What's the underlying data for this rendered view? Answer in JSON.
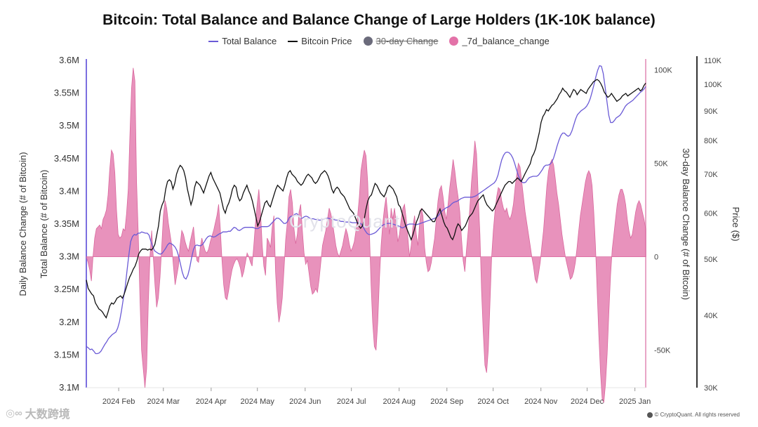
{
  "chart_data": {
    "type": "line",
    "title": "Bitcoin: Total Balance and Balance Change of Large Holders (1K-10K balance)",
    "legend": [
      {
        "name": "Total Balance",
        "color": "#6a5ad6",
        "marker": "line"
      },
      {
        "name": "Bitcoin Price",
        "color": "#111111",
        "marker": "line"
      },
      {
        "name": "30-day Change",
        "color": "#6b6b7b",
        "marker": "dot",
        "hidden": true
      },
      {
        "name": "_7d_balance_change",
        "color": "#e372a8",
        "marker": "dot"
      }
    ],
    "legend_position": "top-center",
    "grid": false,
    "x_ticks": [
      "2024 Feb",
      "2024 Mar",
      "2024 Apr",
      "2024 May",
      "2024 Jun",
      "2024 Jul",
      "2024 Aug",
      "2024 Sep",
      "2024 Oct",
      "2024 Nov",
      "2024 Dec",
      "2025 Jan"
    ],
    "x_range": [
      "2024-01-11",
      "2025-01-08"
    ],
    "axes": {
      "left_outer": {
        "label": "Daily Balance Change (# of Bitcoin)",
        "ticks": []
      },
      "left_inner": {
        "label": "Total Balance (# of Bitcoin)",
        "range": [
          3100000,
          3600000
        ],
        "ticks": [
          "3.6M",
          "3.55M",
          "3.5M",
          "3.45M",
          "3.4M",
          "3.35M",
          "3.3M",
          "3.25M",
          "3.2M",
          "3.15M",
          "3.1M"
        ]
      },
      "right_inner": {
        "label": "30-day Balance Change (# of Bitcoin)",
        "range": [
          -70000,
          105000
        ],
        "ticks": [
          "100K",
          "50K",
          "0",
          "-50K"
        ]
      },
      "right_outer": {
        "label": "Price ($)",
        "scale": "log",
        "range": [
          30000,
          110000
        ],
        "ticks": [
          "110K",
          "100K",
          "90K",
          "80K",
          "70K",
          "60K",
          "50K",
          "40K",
          "30K"
        ]
      }
    },
    "series": [
      {
        "name": "_7d_balance_change",
        "axis": "right_inner",
        "type": "area",
        "values": [
          0,
          -3000,
          -7000,
          -13000,
          0,
          10000,
          15000,
          16000,
          17000,
          15000,
          20000,
          22000,
          25000,
          33000,
          47000,
          57000,
          55000,
          45000,
          25000,
          12000,
          10000,
          11000,
          15000,
          14000,
          23000,
          36000,
          64000,
          90000,
          101000,
          94000,
          40000,
          12000,
          -22000,
          -50000,
          -60000,
          -70000,
          -60000,
          -25000,
          0,
          14000,
          0,
          -15000,
          -27000,
          -22000,
          -11000,
          5000,
          22000,
          30000,
          26000,
          18000,
          12000,
          6000,
          -5000,
          -15000,
          -10000,
          -5000,
          6000,
          14000,
          12000,
          8000,
          5000,
          3000,
          8000,
          12000,
          16000,
          6000,
          -2000,
          -3000,
          5000,
          10000,
          6000,
          3000,
          2000,
          4000,
          8000,
          11000,
          14000,
          18000,
          22000,
          28000,
          15000,
          -2000,
          -15000,
          -22000,
          -23000,
          -18000,
          -12000,
          -7000,
          -4000,
          -2000,
          -1000,
          -3000,
          -6000,
          -11000,
          -8000,
          -3000,
          2000,
          0,
          -3000,
          -5000,
          6000,
          18000,
          28000,
          36000,
          24000,
          6000,
          -5000,
          -10000,
          10000,
          8000,
          5000,
          16000,
          22000,
          -8000,
          -25000,
          -35000,
          -30000,
          -22000,
          -7000,
          9000,
          18000,
          32000,
          36000,
          29000,
          15000,
          7000,
          12000,
          24000,
          28000,
          14000,
          2000,
          -4000,
          -2000,
          -9000,
          -16000,
          -20000,
          -19000,
          -17000,
          -19000,
          -12000,
          -3000,
          6000,
          10000,
          14000,
          20000,
          26000,
          23000,
          18000,
          12000,
          6000,
          2000,
          0,
          3000,
          6000,
          11000,
          15000,
          12000,
          7000,
          3000,
          5000,
          8000,
          14000,
          22000,
          32000,
          46000,
          52000,
          57000,
          54000,
          40000,
          14000,
          -15000,
          -35000,
          -48000,
          -50000,
          -35000,
          -12000,
          6000,
          18000,
          26000,
          32000,
          22000,
          12000,
          26000,
          20000,
          26000,
          18000,
          8000,
          12000,
          20000,
          26000,
          28000,
          20000,
          10000,
          0,
          6000,
          16000,
          22000,
          12000,
          6000,
          18000,
          26000,
          22000,
          5000,
          -3000,
          -8000,
          -7000,
          -3000,
          4000,
          10000,
          20000,
          30000,
          36000,
          38000,
          32000,
          24000,
          20000,
          28000,
          37000,
          44000,
          52000,
          46000,
          38000,
          32000,
          24000,
          10000,
          -2000,
          -8000,
          4000,
          14000,
          26000,
          40000,
          50000,
          62000,
          55000,
          32000,
          12000,
          -18000,
          -40000,
          -58000,
          -62000,
          -50000,
          -25000,
          0,
          14000,
          24000,
          32000,
          37000,
          36000,
          30000,
          26000,
          24000,
          26000,
          22000,
          20000,
          23000,
          28000,
          37000,
          44000,
          50000,
          48000,
          40000,
          32000,
          24000,
          18000,
          12000,
          6000,
          0,
          -5000,
          -12000,
          -14000,
          -9000,
          -3000,
          6000,
          14000,
          26000,
          38000,
          46000,
          50000,
          52000,
          49000,
          42000,
          34000,
          28000,
          20000,
          12000,
          6000,
          0,
          -4000,
          -8000,
          -12000,
          -11000,
          -8000,
          -3000,
          5000,
          14000,
          22000,
          28000,
          34000,
          40000,
          44000,
          46000,
          44000,
          38000,
          24000,
          6000,
          -18000,
          -42000,
          -62000,
          -76000,
          -78000,
          -68000,
          -52000,
          -30000,
          -10000,
          4000,
          12000,
          20000,
          28000,
          33000,
          36000,
          36000,
          33000,
          28000,
          20000,
          14000,
          10000,
          12000,
          18000,
          24000,
          28000,
          30000,
          28000,
          24000,
          20000,
          15000
        ]
      },
      {
        "name": "Total Balance",
        "axis": "left_inner",
        "type": "line",
        "values": [
          3163000,
          3161000,
          3158000,
          3159000,
          3156000,
          3152000,
          3152000,
          3153000,
          3156000,
          3161000,
          3166000,
          3170000,
          3175000,
          3178000,
          3181000,
          3183000,
          3185000,
          3191000,
          3201000,
          3217000,
          3235000,
          3252000,
          3278000,
          3302000,
          3323000,
          3331000,
          3334000,
          3333000,
          3336000,
          3336000,
          3338000,
          3337000,
          3336000,
          3336000,
          3333000,
          3323000,
          3315000,
          3309000,
          3307000,
          3305000,
          3304000,
          3305000,
          3309000,
          3313000,
          3318000,
          3321000,
          3320000,
          3318000,
          3315000,
          3310000,
          3301000,
          3289000,
          3276000,
          3268000,
          3266000,
          3272000,
          3283000,
          3298000,
          3311000,
          3317000,
          3318000,
          3317000,
          3317000,
          3319000,
          3323000,
          3328000,
          3331000,
          3332000,
          3331000,
          3330000,
          3331000,
          3333000,
          3335000,
          3336000,
          3338000,
          3338000,
          3338000,
          3339000,
          3339000,
          3342000,
          3345000,
          3344000,
          3341000,
          3340000,
          3342000,
          3344000,
          3345000,
          3345000,
          3345000,
          3345000,
          3345000,
          3344000,
          3343000,
          3343000,
          3345000,
          3346000,
          3346000,
          3346000,
          3346000,
          3347000,
          3350000,
          3353000,
          3356000,
          3359000,
          3359000,
          3357000,
          3354000,
          3351000,
          3351000,
          3354000,
          3360000,
          3362000,
          3362000,
          3365000,
          3366000,
          3363000,
          3359000,
          3359000,
          3361000,
          3362000,
          3361000,
          3359000,
          3358000,
          3358000,
          3357000,
          3357000,
          3356000,
          3356000,
          3357000,
          3358000,
          3359000,
          3359000,
          3358000,
          3358000,
          3357000,
          3356000,
          3356000,
          3355000,
          3354000,
          3354000,
          3353000,
          3353000,
          3353000,
          3353000,
          3352000,
          3352000,
          3352000,
          3352000,
          3352000,
          3350000,
          3345000,
          3340000,
          3336000,
          3334000,
          3334000,
          3335000,
          3336000,
          3338000,
          3341000,
          3344000,
          3347000,
          3349000,
          3350000,
          3351000,
          3351000,
          3351000,
          3350000,
          3349000,
          3348000,
          3347000,
          3346000,
          3344000,
          3345000,
          3347000,
          3349000,
          3350000,
          3350000,
          3350000,
          3349000,
          3349000,
          3350000,
          3351000,
          3352000,
          3353000,
          3354000,
          3355000,
          3356000,
          3357000,
          3358000,
          3359000,
          3361000,
          3364000,
          3368000,
          3371000,
          3373000,
          3375000,
          3376000,
          3378000,
          3381000,
          3383000,
          3384000,
          3385000,
          3387000,
          3389000,
          3390000,
          3391000,
          3391000,
          3391000,
          3391000,
          3391000,
          3392000,
          3393000,
          3395000,
          3397000,
          3399000,
          3401000,
          3403000,
          3405000,
          3407000,
          3409000,
          3411000,
          3413000,
          3417000,
          3425000,
          3437000,
          3448000,
          3455000,
          3459000,
          3460000,
          3459000,
          3456000,
          3451000,
          3443000,
          3433000,
          3424000,
          3418000,
          3414000,
          3413000,
          3414000,
          3418000,
          3421000,
          3422000,
          3423000,
          3423000,
          3423000,
          3425000,
          3429000,
          3433000,
          3438000,
          3440000,
          3440000,
          3441000,
          3444000,
          3450000,
          3459000,
          3469000,
          3478000,
          3485000,
          3489000,
          3489000,
          3486000,
          3484000,
          3486000,
          3492000,
          3501000,
          3510000,
          3517000,
          3520000,
          3523000,
          3525000,
          3527000,
          3530000,
          3535000,
          3542000,
          3552000,
          3563000,
          3575000,
          3585000,
          3592000,
          3591000,
          3580000,
          3560000,
          3537000,
          3516000,
          3505000,
          3505000,
          3508000,
          3512000,
          3514000,
          3516000,
          3520000,
          3525000,
          3530000,
          3533000,
          3535000,
          3537000,
          3539000,
          3542000,
          3545000,
          3548000,
          3551000,
          3553000,
          3556000,
          3560000
        ]
      },
      {
        "name": "Bitcoin Price",
        "axis": "right_outer",
        "type": "line",
        "values": [
          46000,
          44500,
          44000,
          43500,
          43200,
          42000,
          41500,
          41000,
          40800,
          40500,
          40000,
          39600,
          40500,
          41500,
          42000,
          41800,
          42200,
          42800,
          43000,
          43200,
          42800,
          43500,
          44500,
          45500,
          46500,
          47200,
          48000,
          48600,
          49600,
          51000,
          51600,
          52000,
          52000,
          52000,
          51800,
          52000,
          51800,
          52200,
          53000,
          55000,
          57000,
          60500,
          62000,
          63000,
          66000,
          68000,
          68500,
          68000,
          66000,
          67500,
          70000,
          71500,
          72500,
          72000,
          71000,
          69000,
          66000,
          64000,
          62000,
          63500,
          66500,
          68000,
          67500,
          67000,
          66000,
          65000,
          66500,
          68000,
          69500,
          70500,
          69000,
          68000,
          67000,
          66000,
          65000,
          63000,
          61000,
          60000,
          61500,
          62500,
          64000,
          66000,
          67000,
          66500,
          64000,
          63000,
          63500,
          65000,
          66000,
          67000,
          65500,
          64500,
          63000,
          61000,
          59000,
          57000,
          58000,
          59500,
          61000,
          62500,
          63000,
          62000,
          61500,
          63000,
          64500,
          66000,
          67000,
          66500,
          66000,
          65500,
          67000,
          69000,
          70500,
          71000,
          70000,
          69500,
          69000,
          68000,
          67500,
          67000,
          67500,
          68500,
          69500,
          70000,
          69500,
          69000,
          68000,
          67500,
          68000,
          69000,
          70000,
          70500,
          71000,
          70500,
          69500,
          68000,
          66000,
          65000,
          66000,
          66500,
          66000,
          65000,
          64500,
          64000,
          63000,
          62000,
          61000,
          60500,
          60000,
          59000,
          58000,
          57000,
          56500,
          57000,
          58500,
          61000,
          63000,
          64000,
          64500,
          66000,
          67500,
          67000,
          66000,
          65000,
          64500,
          64000,
          65000,
          66500,
          67000,
          66500,
          66000,
          65000,
          64000,
          62000,
          61500,
          60000,
          58500,
          57000,
          56000,
          55000,
          54000,
          55000,
          56500,
          58000,
          59000,
          60500,
          61000,
          60500,
          60000,
          59500,
          59000,
          58500,
          58000,
          58000,
          59000,
          60000,
          61000,
          59500,
          58000,
          57000,
          56500,
          55500,
          54500,
          54000,
          55000,
          56500,
          57500,
          57000,
          56000,
          56500,
          57000,
          58000,
          59000,
          59500,
          60000,
          61000,
          62000,
          63000,
          63500,
          64000,
          64500,
          63000,
          62000,
          61500,
          61000,
          60500,
          61000,
          62000,
          63000,
          64000,
          65000,
          66000,
          67000,
          67500,
          68000,
          68000,
          67500,
          68000,
          68500,
          69000,
          68500,
          68000,
          69000,
          70000,
          71000,
          72000,
          73000,
          75000,
          76000,
          77500,
          80000,
          82500,
          86000,
          88000,
          89000,
          90500,
          90000,
          91000,
          92000,
          92500,
          93500,
          94500,
          96000,
          97000,
          98500,
          97500,
          97000,
          96000,
          95000,
          96500,
          98000,
          97500,
          96000,
          97000,
          98000,
          97500,
          97000,
          96500,
          98000,
          99000,
          100000,
          101000,
          101500,
          102000,
          101500,
          100500,
          99000,
          97000,
          96000,
          95000,
          95500,
          96500,
          95500,
          94500,
          93500,
          94000,
          94500,
          95500,
          96000,
          96500,
          95500,
          96000,
          96500,
          97000,
          97500,
          98000,
          98500,
          97500,
          98000,
          99500,
          100500
        ]
      }
    ]
  },
  "watermark": "CryptoQuant",
  "footer": {
    "left_brand": "大数跨境",
    "right_credit": "© CryptoQuant. All rights reserved"
  }
}
